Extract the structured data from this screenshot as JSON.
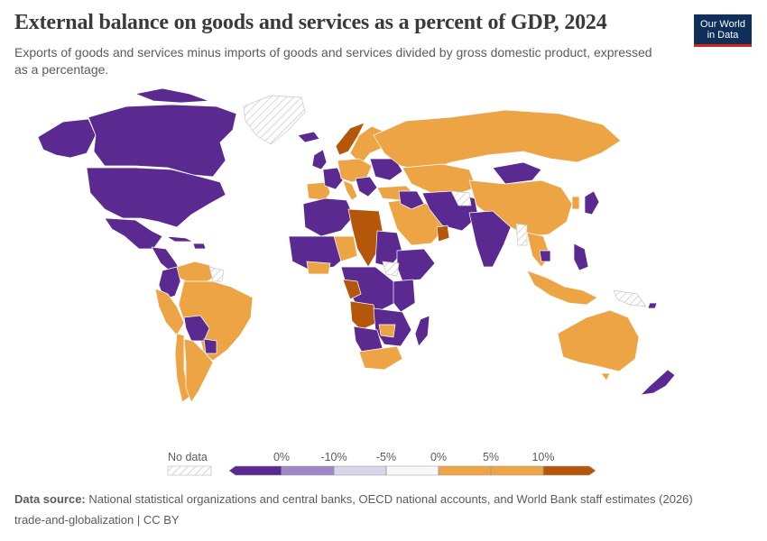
{
  "header": {
    "title": "External balance on goods and services as a percent of GDP, 2024",
    "subtitle": "Exports of goods and services minus imports of goods and services divided by gross domestic product, expressed as a percentage."
  },
  "logo": {
    "line1": "Our World",
    "line2": "in Data"
  },
  "colors": {
    "deep_negative": "#5a2a91",
    "negative": "#9c88c8",
    "slight_negative": "#d7d5ea",
    "neutral": "#f7f7f7",
    "positive": "#eda444",
    "deep_positive": "#b5570b",
    "no_data": "#e6e6e6",
    "border": "#ffffff"
  },
  "legend": {
    "no_data_label": "No data",
    "bins": [
      {
        "label": "0%"
      },
      {
        "label": "-10%"
      },
      {
        "label": "-5%"
      },
      {
        "label": "0%"
      },
      {
        "label": "5%"
      },
      {
        "label": "10%"
      }
    ]
  },
  "footer": {
    "source_label": "Data source:",
    "source_text": " National statistical organizations and central banks, OECD national accounts, and World Bank staff estimates (2026)",
    "slug": "trade-and-globalization | CC BY"
  }
}
